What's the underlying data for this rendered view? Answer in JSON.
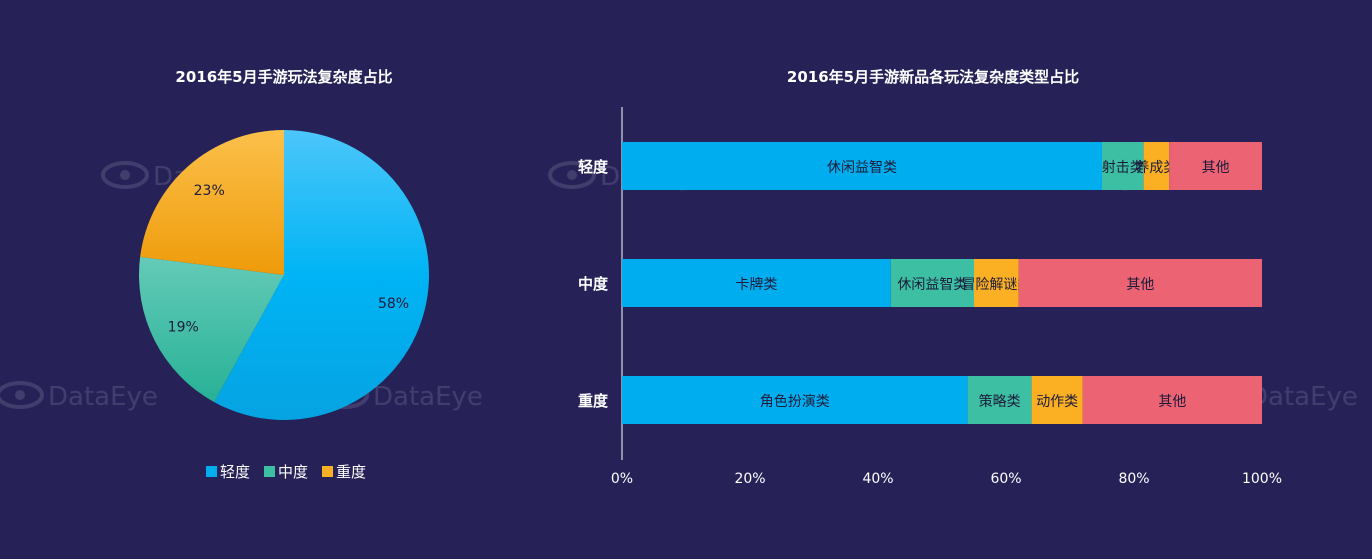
{
  "colors": {
    "background": "#262257",
    "light": "#00AEEF",
    "medium": "#3DBFA3",
    "heavy": "#FBAF22",
    "other": "#EC6474",
    "axis_text": "#ffffff",
    "segment_text": "#1c1c3a"
  },
  "watermark_text": "DataEye",
  "chart_data": [
    {
      "type": "pie",
      "title": "2016年5月手游玩法复杂度占比",
      "legend_position": "bottom",
      "slices": [
        {
          "name": "轻度",
          "value": 58,
          "label": "58%",
          "color": "#00AEEF"
        },
        {
          "name": "中度",
          "value": 19,
          "label": "19%",
          "color": "#3DBFA3"
        },
        {
          "name": "重度",
          "value": 23,
          "label": "23%",
          "color": "#FBAF22"
        }
      ]
    },
    {
      "type": "bar",
      "orientation": "horizontal",
      "stacked": true,
      "title": "2016年5月手游新品各玩法复杂度类型占比",
      "categories": [
        "轻度",
        "中度",
        "重度"
      ],
      "xlim": [
        0,
        100
      ],
      "xticks": [
        "0%",
        "20%",
        "40%",
        "60%",
        "80%",
        "100%"
      ],
      "grid": false,
      "rows": [
        {
          "category": "轻度",
          "segments": [
            {
              "name": "休闲益智类",
              "value": 75,
              "color": "#00AEEF"
            },
            {
              "name": "射击类",
              "value": 6.5,
              "color": "#3DBFA3"
            },
            {
              "name": "养成类",
              "value": 4,
              "color": "#FBAF22"
            },
            {
              "name": "其他",
              "value": 14.5,
              "color": "#EC6474"
            }
          ]
        },
        {
          "category": "中度",
          "segments": [
            {
              "name": "卡牌类",
              "value": 42,
              "color": "#00AEEF"
            },
            {
              "name": "休闲益智类",
              "value": 13,
              "color": "#3DBFA3"
            },
            {
              "name": "冒险解谜类",
              "value": 7,
              "color": "#FBAF22"
            },
            {
              "name": "其他",
              "value": 38,
              "color": "#EC6474"
            }
          ]
        },
        {
          "category": "重度",
          "segments": [
            {
              "name": "角色扮演类",
              "value": 54,
              "color": "#00AEEF"
            },
            {
              "name": "策略类",
              "value": 10,
              "color": "#3DBFA3"
            },
            {
              "name": "动作类",
              "value": 8,
              "color": "#FBAF22"
            },
            {
              "name": "其他",
              "value": 28,
              "color": "#EC6474"
            }
          ]
        }
      ]
    }
  ]
}
